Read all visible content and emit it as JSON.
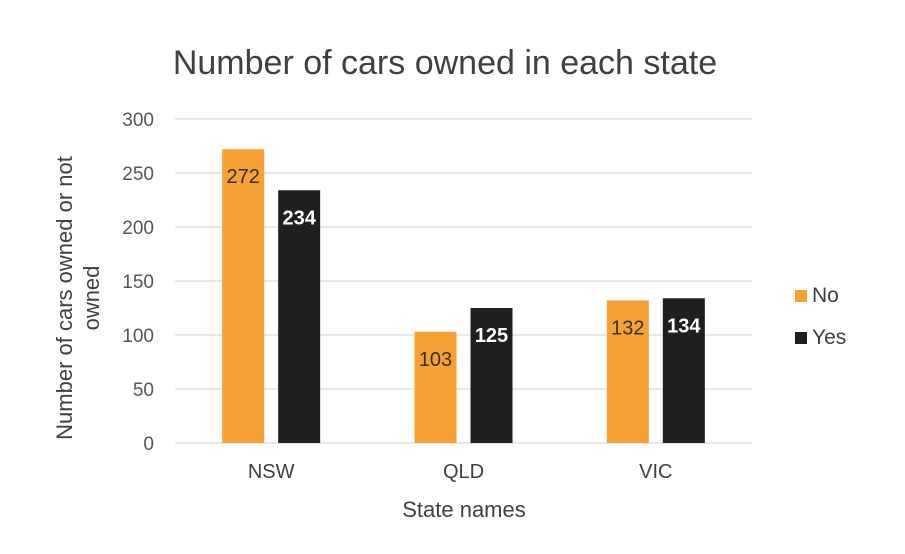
{
  "chart_data": {
    "type": "bar",
    "title": "Number of cars owned in each state",
    "xlabel": "State names",
    "ylabel_lines": [
      "Number of cars owned or not",
      "owned"
    ],
    "categories": [
      "NSW",
      "QLD",
      "VIC"
    ],
    "series": [
      {
        "name": "No",
        "values": [
          272,
          103,
          132
        ],
        "labels": [
          "272",
          "103",
          "132"
        ],
        "color": "#F7A033"
      },
      {
        "name": "Yes",
        "values": [
          234,
          125,
          134
        ],
        "labels": [
          "234",
          "125",
          "134"
        ],
        "color": "#1F1F1F"
      }
    ],
    "ylim": [
      0,
      300
    ],
    "yticks": [
      0,
      50,
      100,
      150,
      200,
      250,
      300
    ],
    "grid": true,
    "legend": "right",
    "gridline_color": "#D9D9D9"
  }
}
